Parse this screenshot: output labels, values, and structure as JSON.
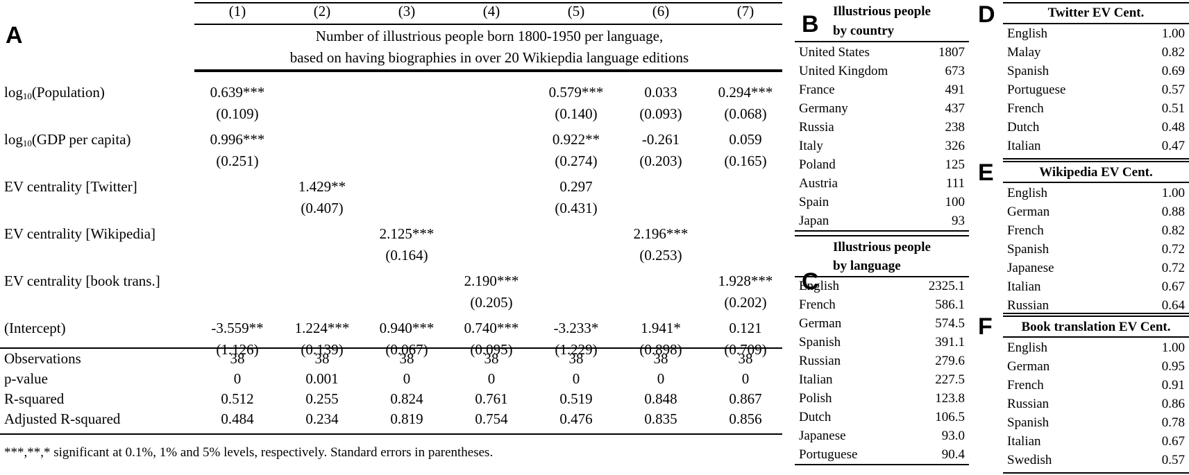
{
  "panel_a": {
    "letter": "A",
    "column_numbers": [
      "(1)",
      "(2)",
      "(3)",
      "(4)",
      "(5)",
      "(6)",
      "(7)"
    ],
    "title_line1": "Number of illustrious people born 1800-1950 per language,",
    "title_line2": "based on having biographies in over 20 Wikiepdia language editions",
    "log_sub": "10",
    "rows": [
      {
        "label_pre": "log",
        "label_post": "(Population)",
        "coef": [
          "0.639***",
          "",
          "",
          "",
          "0.579***",
          "0.033",
          "0.294***"
        ],
        "se": [
          "(0.109)",
          "",
          "",
          "",
          "(0.140)",
          "(0.093)",
          "(0.068)"
        ]
      },
      {
        "label_pre": "log",
        "label_post": "(GDP per capita)",
        "coef": [
          "0.996***",
          "",
          "",
          "",
          "0.922**",
          "-0.261",
          "0.059"
        ],
        "se": [
          "(0.251)",
          "",
          "",
          "",
          "(0.274)",
          "(0.203)",
          "(0.165)"
        ]
      },
      {
        "label": "EV centrality [Twitter]",
        "coef": [
          "",
          "1.429**",
          "",
          "",
          "0.297",
          "",
          ""
        ],
        "se": [
          "",
          "(0.407)",
          "",
          "",
          "(0.431)",
          "",
          ""
        ]
      },
      {
        "label": "EV centrality [Wikipedia]",
        "coef": [
          "",
          "",
          "2.125***",
          "",
          "",
          "2.196***",
          ""
        ],
        "se": [
          "",
          "",
          "(0.164)",
          "",
          "",
          "(0.253)",
          ""
        ]
      },
      {
        "label": "EV centrality [book trans.]",
        "coef": [
          "",
          "",
          "",
          "2.190***",
          "",
          "",
          "1.928***"
        ],
        "se": [
          "",
          "",
          "",
          "(0.205)",
          "",
          "",
          "(0.202)"
        ]
      },
      {
        "label": "(Intercept)",
        "coef": [
          "-3.559**",
          "1.224***",
          "0.940***",
          "0.740***",
          "-3.233*",
          "1.941*",
          "0.121"
        ],
        "se": [
          "(1.126)",
          "(0.139)",
          "(0.067)",
          "(0.095)",
          "(1.229)",
          "(0.898)",
          "(0.709)"
        ]
      }
    ],
    "stats": [
      {
        "label": "Observations",
        "values": [
          "38",
          "38",
          "38",
          "38",
          "38",
          "38",
          "38"
        ]
      },
      {
        "label": "p-value",
        "values": [
          "0",
          "0.001",
          "0",
          "0",
          "0",
          "0",
          "0"
        ]
      },
      {
        "label": "R-squared",
        "values": [
          "0.512",
          "0.255",
          "0.824",
          "0.761",
          "0.519",
          "0.848",
          "0.867"
        ]
      },
      {
        "label": "Adjusted R-squared",
        "values": [
          "0.484",
          "0.234",
          "0.819",
          "0.754",
          "0.476",
          "0.835",
          "0.856"
        ]
      }
    ],
    "footnote": "***,**,* significant at 0.1%, 1% and 5% levels, respectively. Standard errors in parentheses."
  },
  "panel_b": {
    "letter": "B",
    "title_line1": "Illustrious people",
    "title_line2": "by country",
    "rows": [
      {
        "label": "United States",
        "value": "1807"
      },
      {
        "label": "United Kingdom",
        "value": "673"
      },
      {
        "label": "France",
        "value": "491"
      },
      {
        "label": "Germany",
        "value": "437"
      },
      {
        "label": "Russia",
        "value": "238"
      },
      {
        "label": "Italy",
        "value": "326"
      },
      {
        "label": "Poland",
        "value": "125"
      },
      {
        "label": "Austria",
        "value": "111"
      },
      {
        "label": "Spain",
        "value": "100"
      },
      {
        "label": "Japan",
        "value": "93"
      }
    ]
  },
  "panel_c": {
    "letter": "C",
    "title_line1": "Illustrious people",
    "title_line2": "by language",
    "rows": [
      {
        "label": "English",
        "value": "2325.1"
      },
      {
        "label": "French",
        "value": "586.1"
      },
      {
        "label": "German",
        "value": "574.5"
      },
      {
        "label": "Spanish",
        "value": "391.1"
      },
      {
        "label": "Russian",
        "value": "279.6"
      },
      {
        "label": "Italian",
        "value": "227.5"
      },
      {
        "label": "Polish",
        "value": "123.8"
      },
      {
        "label": "Dutch",
        "value": "106.5"
      },
      {
        "label": "Japanese",
        "value": "93.0"
      },
      {
        "label": "Portuguese",
        "value": "90.4"
      }
    ]
  },
  "panel_d": {
    "letter": "D",
    "title": "Twitter EV Cent.",
    "rows": [
      {
        "label": "English",
        "value": "1.00"
      },
      {
        "label": "Malay",
        "value": "0.82"
      },
      {
        "label": "Spanish",
        "value": "0.69"
      },
      {
        "label": "Portuguese",
        "value": "0.57"
      },
      {
        "label": "French",
        "value": "0.51"
      },
      {
        "label": "Dutch",
        "value": "0.48"
      },
      {
        "label": "Italian",
        "value": "0.47"
      }
    ]
  },
  "panel_e": {
    "letter": "E",
    "title": "Wikipedia EV Cent.",
    "rows": [
      {
        "label": "English",
        "value": "1.00"
      },
      {
        "label": "German",
        "value": "0.88"
      },
      {
        "label": "French",
        "value": "0.82"
      },
      {
        "label": "Spanish",
        "value": "0.72"
      },
      {
        "label": "Japanese",
        "value": "0.72"
      },
      {
        "label": "Italian",
        "value": "0.67"
      },
      {
        "label": "Russian",
        "value": "0.64"
      }
    ]
  },
  "panel_f": {
    "letter": "F",
    "title": "Book translation EV Cent.",
    "rows": [
      {
        "label": "English",
        "value": "1.00"
      },
      {
        "label": "German",
        "value": "0.95"
      },
      {
        "label": "French",
        "value": "0.91"
      },
      {
        "label": "Russian",
        "value": "0.86"
      },
      {
        "label": "Spanish",
        "value": "0.78"
      },
      {
        "label": "Italian",
        "value": "0.67"
      },
      {
        "label": "Swedish",
        "value": "0.57"
      }
    ]
  }
}
